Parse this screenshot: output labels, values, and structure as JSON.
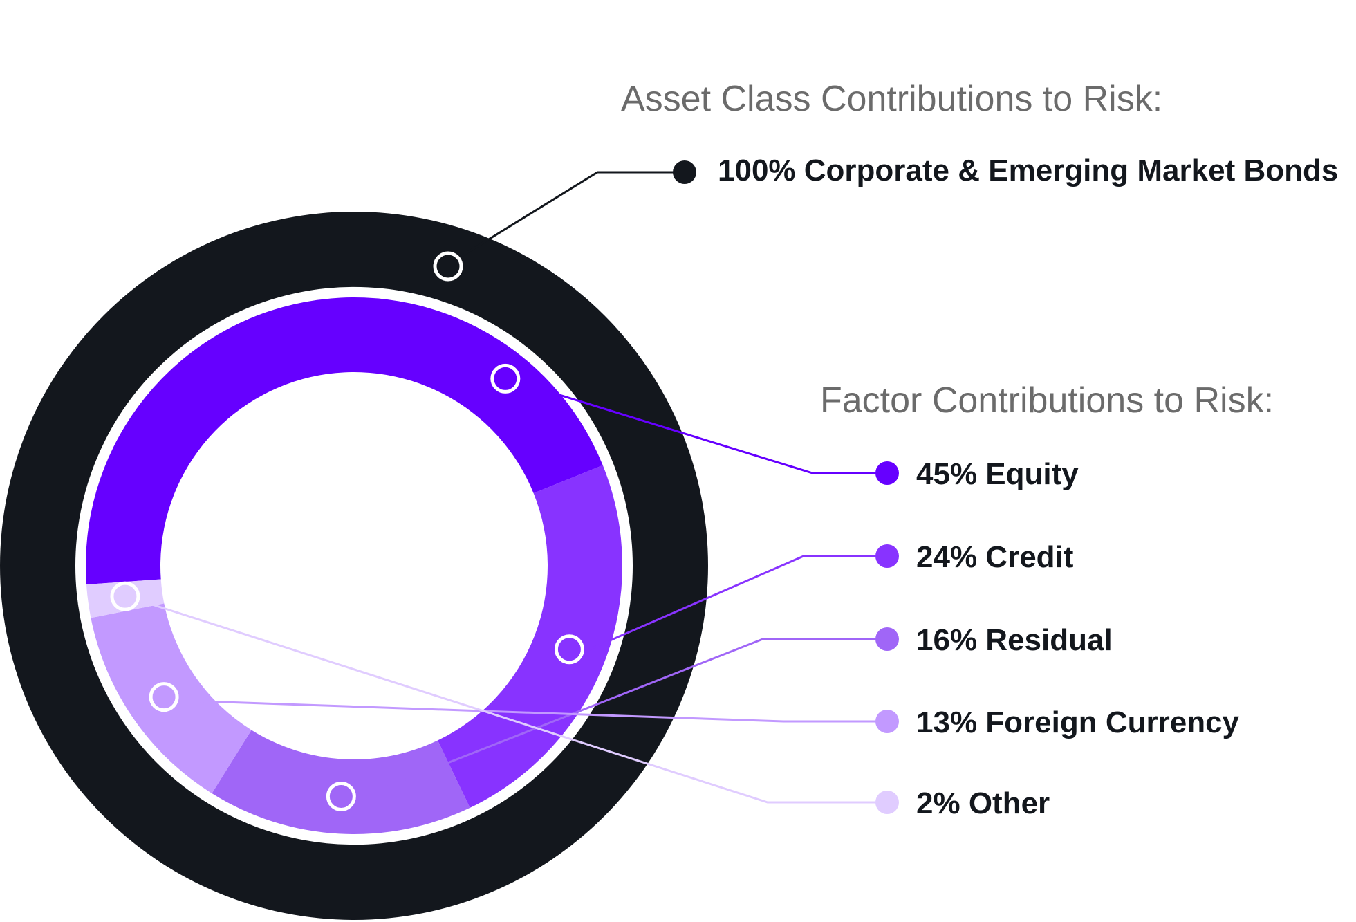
{
  "chart_data": {
    "type": "pie",
    "rings": [
      {
        "name": "Asset Class Contributions to Risk",
        "heading": "Asset Class Contributions to Risk:",
        "slices": [
          {
            "label": "100% Corporate & Emerging Market Bonds",
            "category": "Corporate & Emerging Market Bonds",
            "value": 100,
            "color": "#13171d"
          }
        ]
      },
      {
        "name": "Factor Contributions to Risk",
        "heading": "Factor Contributions to Risk:",
        "slices": [
          {
            "label": "45% Equity",
            "category": "Equity",
            "value": 45,
            "color": "#6600ff"
          },
          {
            "label": "24% Credit",
            "category": "Credit",
            "value": 24,
            "color": "#8833ff"
          },
          {
            "label": "16% Residual",
            "category": "Residual",
            "value": 16,
            "color": "#a066f7"
          },
          {
            "label": "13% Foreign Currency",
            "category": "Foreign Currency",
            "value": 13,
            "color": "#c299ff"
          },
          {
            "label": "2% Other",
            "category": "Other",
            "value": 2,
            "color": "#e0ccff"
          }
        ]
      }
    ],
    "legend": "right"
  }
}
